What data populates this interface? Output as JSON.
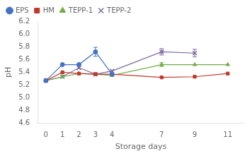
{
  "chart_data": {
    "type": "line",
    "x": [
      0,
      1,
      2,
      3,
      4,
      7,
      9,
      11
    ],
    "series": [
      {
        "name": "EPS",
        "color": "#4472C4",
        "marker": "circle",
        "values": [
          5.27,
          5.52,
          5.52,
          5.72,
          5.37,
          null,
          null,
          null
        ],
        "yerr": [
          0.0,
          0.0,
          0.0,
          0.07,
          0.0,
          null,
          null,
          null
        ]
      },
      {
        "name": "HM",
        "color": "#C0392B",
        "marker": "square",
        "values": [
          5.27,
          5.4,
          5.38,
          5.37,
          5.37,
          5.32,
          5.33,
          5.38
        ],
        "yerr": [
          0.0,
          0.0,
          0.0,
          0.0,
          0.0,
          0.0,
          0.0,
          0.0
        ]
      },
      {
        "name": "TEPP-1",
        "color": "#70AD47",
        "marker": "triangle",
        "values": [
          5.27,
          5.33,
          5.38,
          5.37,
          5.35,
          5.52,
          5.52,
          5.52
        ],
        "yerr": [
          0.0,
          0.0,
          0.0,
          0.0,
          0.0,
          0.03,
          0.0,
          0.0
        ]
      },
      {
        "name": "TEPP-2",
        "color": "#7B68A0",
        "marker": "cross",
        "values": [
          5.27,
          5.33,
          5.47,
          5.37,
          5.42,
          5.72,
          5.7,
          null
        ],
        "yerr": [
          0.0,
          0.0,
          0.0,
          0.0,
          0.0,
          0.05,
          0.06,
          null
        ]
      }
    ],
    "xlabel": "Storage days",
    "ylabel": "pH",
    "xlim": [
      -0.5,
      12
    ],
    "xticks": [
      0,
      1,
      2,
      3,
      4,
      7,
      9,
      11
    ],
    "ylim": [
      4.6,
      6.2
    ],
    "yticks": [
      4.6,
      4.8,
      {
        "value": 5.0,
        "label": "5.0"
      },
      5.2,
      5.4,
      5.6,
      5.8,
      {
        "value": 6.0,
        "label": "6.0"
      },
      6.2
    ],
    "grid": false,
    "legend": "upper left"
  }
}
